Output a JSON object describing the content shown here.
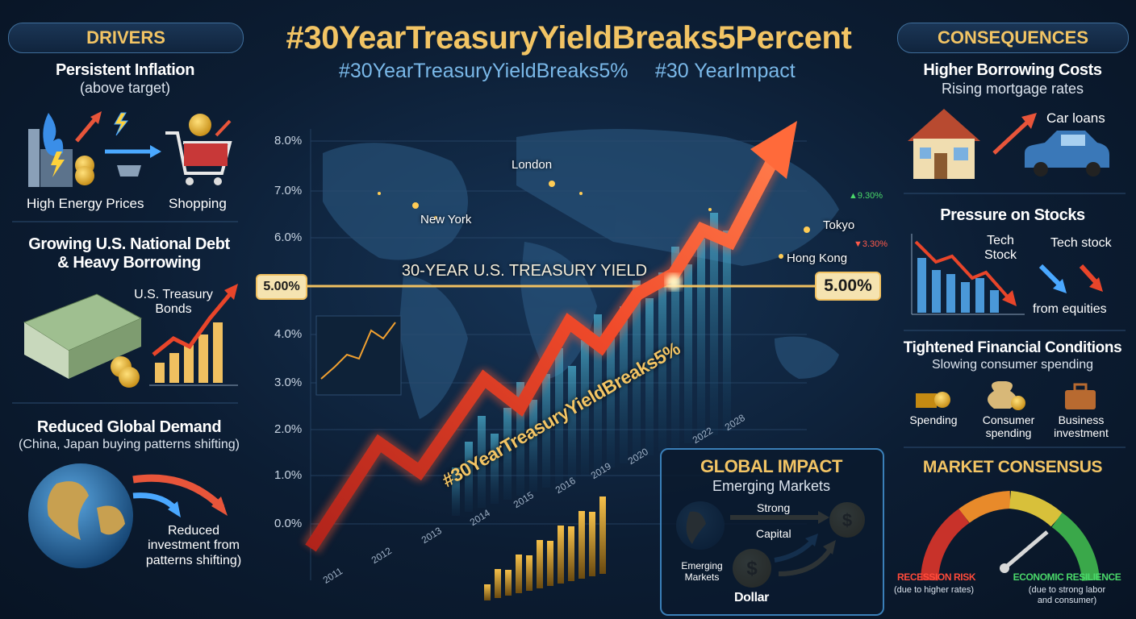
{
  "header": {
    "title": "#30YearTreasuryYieldBreaks5Percent",
    "hashtags": [
      "#30YearTreasuryYieldBreaks5%",
      "#30 YearImpact"
    ]
  },
  "drivers": {
    "heading": "DRIVERS",
    "items": [
      {
        "title": "Persistent Inflation",
        "subtitle": "(above target)",
        "labels": [
          "High Energy Prices",
          "Shopping"
        ]
      },
      {
        "title": "Growing U.S. National Debt\n& Heavy Borrowing",
        "labels": [
          "U.S. Treasury\nBonds"
        ]
      },
      {
        "title": "Reduced Global Demand",
        "subtitle": "(China, Japan buying patterns shifting)",
        "labels": [
          "Reduced\ninvestment from\npatterns shifting)"
        ]
      }
    ]
  },
  "center": {
    "y_axis": [
      "8.0%",
      "7.0%",
      "6.0%",
      "4.0%",
      "3.0%",
      "2.0%",
      "1.0%",
      "0.0%"
    ],
    "years": [
      "2011",
      "2012",
      "2013",
      "2014",
      "2015",
      "2016",
      "2019",
      "2020",
      "2022",
      "2028"
    ],
    "cities": [
      "London",
      "New York",
      "Tokyo",
      "Hong Kong"
    ],
    "yield_label": "30-YEAR U.S. TREASURY YIELD",
    "level_left": "5.00%",
    "level_right": "5.00%",
    "arrow_label": "#30YearTreasuryYieldBreaks5%",
    "tickers": [
      "▲9.30%",
      "▼3.30%"
    ]
  },
  "global_impact": {
    "title": "GLOBAL IMPACT",
    "subtitle": "Emerging Markets",
    "labels": [
      "Strong",
      "Capital",
      "Emerging\nMarkets",
      "Dollar"
    ]
  },
  "consequences": {
    "heading": "CONSEQUENCES",
    "items": [
      {
        "title": "Higher Borrowing Costs",
        "subtitle": "Rising mortgage rates",
        "labels": [
          "Car loans"
        ]
      },
      {
        "title": "Pressure on Stocks",
        "labels": [
          "Tech\nStock",
          "Tech stock",
          "from equities"
        ]
      },
      {
        "title": "Tightened Financial Conditions",
        "subtitle": "Slowing consumer spending",
        "labels": [
          "Spending",
          "Consumer\nspending",
          "Business\ninvestment"
        ]
      }
    ]
  },
  "market_consensus": {
    "title": "MARKET CONSENSUS",
    "left_label": "RECESSION RISK",
    "left_note": "(due to higher rates)",
    "right_label": "ECONOMIC RESILIENCE",
    "right_note": "(due to strong labor\nand consumer)"
  }
}
